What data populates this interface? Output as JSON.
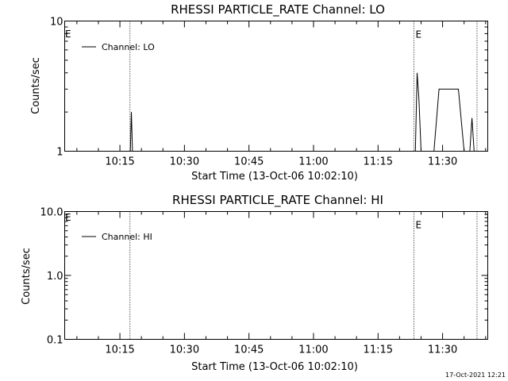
{
  "chart_data": [
    {
      "type": "line",
      "title": "RHESSI PARTICLE_RATE Channel: LO",
      "xlabel": "Start Time (13-Oct-06 10:02:10)",
      "ylabel": "Counts/sec",
      "yscale": "log",
      "ylim": [
        1,
        10
      ],
      "xlim": [
        "10:02:10",
        "11:40:30"
      ],
      "x_ticks": [
        "10:15",
        "10:30",
        "10:45",
        "11:00",
        "11:15",
        "11:30"
      ],
      "y_ticks": [
        "1",
        "10"
      ],
      "legend": {
        "entries": [
          "Channel: LO"
        ],
        "position": "top-left"
      },
      "event_markers": [
        {
          "time": "10:17:20",
          "label": "",
          "style": "dotted"
        },
        {
          "time": "11:23:20",
          "label": "E",
          "style": "dotted"
        },
        {
          "time": "11:38:00",
          "label": "",
          "style": "dotted"
        }
      ],
      "corner_label": "E",
      "series": [
        {
          "name": "Channel: LO",
          "points": [
            [
              "10:17:25",
              1.0
            ],
            [
              "10:17:40",
              2.0
            ],
            [
              "10:17:55",
              1.0
            ],
            [
              "11:23:40",
              1.0
            ],
            [
              "11:24:05",
              4.0
            ],
            [
              "11:24:30",
              2.5
            ],
            [
              "11:25:00",
              1.0
            ],
            [
              "11:26:10",
              1.0
            ],
            [
              "11:28:00",
              1.0
            ],
            [
              "11:29:10",
              3.0
            ],
            [
              "11:33:40",
              3.0
            ],
            [
              "11:35:00",
              1.0
            ],
            [
              "11:36:20",
              1.0
            ],
            [
              "11:36:50",
              1.8
            ],
            [
              "11:37:20",
              1.0
            ]
          ]
        }
      ]
    },
    {
      "type": "line",
      "title": "RHESSI PARTICLE_RATE Channel: HI",
      "xlabel": "Start Time (13-Oct-06 10:02:10)",
      "ylabel": "Counts/sec",
      "yscale": "log",
      "ylim": [
        0.1,
        10
      ],
      "xlim": [
        "10:02:10",
        "11:40:30"
      ],
      "x_ticks": [
        "10:15",
        "10:30",
        "10:45",
        "11:00",
        "11:15",
        "11:30"
      ],
      "y_ticks": [
        "0.1",
        "1.0",
        "10.0"
      ],
      "legend": {
        "entries": [
          "Channel: HI"
        ],
        "position": "top-left"
      },
      "event_markers": [
        {
          "time": "10:17:20",
          "label": "",
          "style": "dotted"
        },
        {
          "time": "11:23:20",
          "label": "E",
          "style": "dotted"
        },
        {
          "time": "11:38:00",
          "label": "",
          "style": "dotted"
        }
      ],
      "corner_label": "E",
      "series": [
        {
          "name": "Channel: HI",
          "points": []
        }
      ]
    }
  ],
  "footer": {
    "timestamp": "17-Oct-2021 12:21"
  },
  "colors": {
    "background": "#ffffff",
    "foreground": "#000000"
  }
}
